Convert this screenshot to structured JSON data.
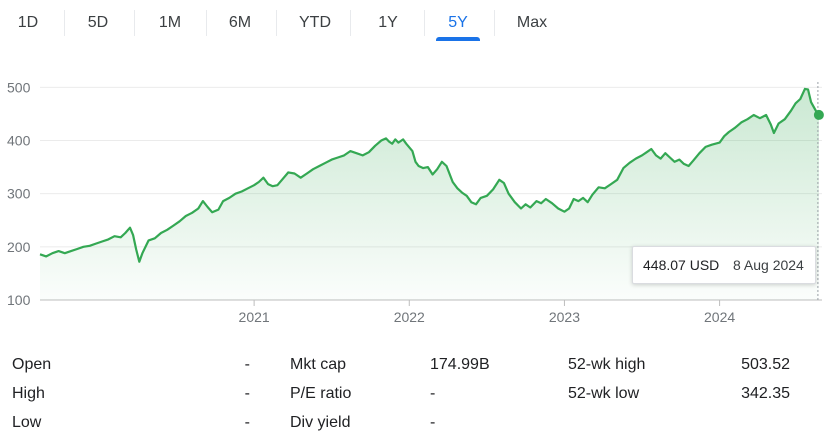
{
  "tabs": [
    {
      "label": "1D",
      "active": false
    },
    {
      "label": "5D",
      "active": false
    },
    {
      "label": "1M",
      "active": false
    },
    {
      "label": "6M",
      "active": false
    },
    {
      "label": "YTD",
      "active": false
    },
    {
      "label": "1Y",
      "active": false
    },
    {
      "label": "5Y",
      "active": true
    },
    {
      "label": "Max",
      "active": false
    }
  ],
  "tooltip": {
    "price": "448.07 USD",
    "date": "8 Aug 2024"
  },
  "colors": {
    "line": "#34a853",
    "fill": "#34a853",
    "active_tab": "#1a73e8",
    "grid": "#ebebeb"
  },
  "chart_data": {
    "type": "area",
    "title": "",
    "xlabel": "",
    "ylabel": "",
    "ylim": [
      100,
      510
    ],
    "xlim": [
      2019.62,
      2024.66
    ],
    "y_ticks": [
      100,
      200,
      300,
      400,
      500
    ],
    "x_ticks": [
      {
        "value": 2021.0,
        "label": "2021"
      },
      {
        "value": 2022.0,
        "label": "2022"
      },
      {
        "value": 2023.0,
        "label": "2023"
      },
      {
        "value": 2024.0,
        "label": "2024"
      }
    ],
    "grid": true,
    "series": [
      {
        "points": [
          [
            2019.62,
            186
          ],
          [
            2019.66,
            182
          ],
          [
            2019.7,
            188
          ],
          [
            2019.74,
            192
          ],
          [
            2019.78,
            188
          ],
          [
            2019.82,
            192
          ],
          [
            2019.86,
            196
          ],
          [
            2019.9,
            200
          ],
          [
            2019.94,
            202
          ],
          [
            2019.98,
            206
          ],
          [
            2020.02,
            210
          ],
          [
            2020.06,
            214
          ],
          [
            2020.1,
            220
          ],
          [
            2020.14,
            218
          ],
          [
            2020.17,
            226
          ],
          [
            2020.2,
            236
          ],
          [
            2020.22,
            222
          ],
          [
            2020.24,
            195
          ],
          [
            2020.26,
            172
          ],
          [
            2020.28,
            188
          ],
          [
            2020.32,
            212
          ],
          [
            2020.36,
            216
          ],
          [
            2020.4,
            226
          ],
          [
            2020.44,
            232
          ],
          [
            2020.48,
            240
          ],
          [
            2020.52,
            248
          ],
          [
            2020.56,
            258
          ],
          [
            2020.6,
            264
          ],
          [
            2020.64,
            272
          ],
          [
            2020.67,
            286
          ],
          [
            2020.7,
            275
          ],
          [
            2020.73,
            265
          ],
          [
            2020.77,
            270
          ],
          [
            2020.8,
            286
          ],
          [
            2020.84,
            292
          ],
          [
            2020.88,
            300
          ],
          [
            2020.92,
            304
          ],
          [
            2020.96,
            310
          ],
          [
            2021.0,
            316
          ],
          [
            2021.03,
            322
          ],
          [
            2021.06,
            330
          ],
          [
            2021.09,
            318
          ],
          [
            2021.12,
            314
          ],
          [
            2021.15,
            316
          ],
          [
            2021.18,
            326
          ],
          [
            2021.22,
            340
          ],
          [
            2021.26,
            338
          ],
          [
            2021.3,
            330
          ],
          [
            2021.34,
            338
          ],
          [
            2021.38,
            346
          ],
          [
            2021.42,
            352
          ],
          [
            2021.46,
            358
          ],
          [
            2021.5,
            364
          ],
          [
            2021.54,
            368
          ],
          [
            2021.58,
            372
          ],
          [
            2021.62,
            380
          ],
          [
            2021.66,
            376
          ],
          [
            2021.7,
            372
          ],
          [
            2021.74,
            378
          ],
          [
            2021.78,
            390
          ],
          [
            2021.82,
            400
          ],
          [
            2021.85,
            404
          ],
          [
            2021.87,
            398
          ],
          [
            2021.89,
            394
          ],
          [
            2021.91,
            402
          ],
          [
            2021.93,
            396
          ],
          [
            2021.96,
            402
          ],
          [
            2021.98,
            394
          ],
          [
            2022.02,
            380
          ],
          [
            2022.04,
            360
          ],
          [
            2022.06,
            352
          ],
          [
            2022.09,
            348
          ],
          [
            2022.12,
            350
          ],
          [
            2022.15,
            336
          ],
          [
            2022.18,
            346
          ],
          [
            2022.21,
            360
          ],
          [
            2022.24,
            352
          ],
          [
            2022.28,
            322
          ],
          [
            2022.31,
            310
          ],
          [
            2022.34,
            302
          ],
          [
            2022.37,
            296
          ],
          [
            2022.4,
            284
          ],
          [
            2022.43,
            280
          ],
          [
            2022.46,
            292
          ],
          [
            2022.5,
            296
          ],
          [
            2022.54,
            308
          ],
          [
            2022.58,
            326
          ],
          [
            2022.61,
            320
          ],
          [
            2022.64,
            300
          ],
          [
            2022.68,
            284
          ],
          [
            2022.72,
            272
          ],
          [
            2022.75,
            280
          ],
          [
            2022.78,
            274
          ],
          [
            2022.82,
            286
          ],
          [
            2022.85,
            282
          ],
          [
            2022.88,
            290
          ],
          [
            2022.92,
            282
          ],
          [
            2022.96,
            272
          ],
          [
            2023.0,
            266
          ],
          [
            2023.03,
            272
          ],
          [
            2023.06,
            290
          ],
          [
            2023.09,
            286
          ],
          [
            2023.12,
            292
          ],
          [
            2023.15,
            284
          ],
          [
            2023.18,
            298
          ],
          [
            2023.22,
            312
          ],
          [
            2023.26,
            310
          ],
          [
            2023.3,
            318
          ],
          [
            2023.34,
            326
          ],
          [
            2023.38,
            348
          ],
          [
            2023.42,
            358
          ],
          [
            2023.46,
            366
          ],
          [
            2023.5,
            372
          ],
          [
            2023.53,
            378
          ],
          [
            2023.56,
            384
          ],
          [
            2023.59,
            372
          ],
          [
            2023.62,
            366
          ],
          [
            2023.65,
            376
          ],
          [
            2023.68,
            368
          ],
          [
            2023.71,
            360
          ],
          [
            2023.74,
            364
          ],
          [
            2023.77,
            356
          ],
          [
            2023.8,
            352
          ],
          [
            2023.83,
            362
          ],
          [
            2023.87,
            376
          ],
          [
            2023.91,
            388
          ],
          [
            2023.95,
            392
          ],
          [
            2024.0,
            396
          ],
          [
            2024.03,
            408
          ],
          [
            2024.06,
            416
          ],
          [
            2024.1,
            424
          ],
          [
            2024.14,
            434
          ],
          [
            2024.18,
            440
          ],
          [
            2024.22,
            448
          ],
          [
            2024.26,
            442
          ],
          [
            2024.3,
            448
          ],
          [
            2024.33,
            430
          ],
          [
            2024.35,
            414
          ],
          [
            2024.38,
            432
          ],
          [
            2024.42,
            440
          ],
          [
            2024.46,
            456
          ],
          [
            2024.49,
            470
          ],
          [
            2024.52,
            478
          ],
          [
            2024.55,
            497
          ],
          [
            2024.57,
            496
          ],
          [
            2024.59,
            472
          ],
          [
            2024.62,
            456
          ],
          [
            2024.64,
            448.07
          ]
        ]
      }
    ],
    "last_point": [
      2024.64,
      448.07
    ]
  },
  "stats": {
    "open": {
      "label": "Open",
      "value": "-"
    },
    "high": {
      "label": "High",
      "value": "-"
    },
    "low": {
      "label": "Low",
      "value": "-"
    },
    "mkt_cap": {
      "label": "Mkt cap",
      "value": "174.99B"
    },
    "pe_ratio": {
      "label": "P/E ratio",
      "value": "-"
    },
    "div_yield": {
      "label": "Div yield",
      "value": "-"
    },
    "wk52_high": {
      "label": "52-wk high",
      "value": "503.52"
    },
    "wk52_low": {
      "label": "52-wk low",
      "value": "342.35"
    }
  }
}
